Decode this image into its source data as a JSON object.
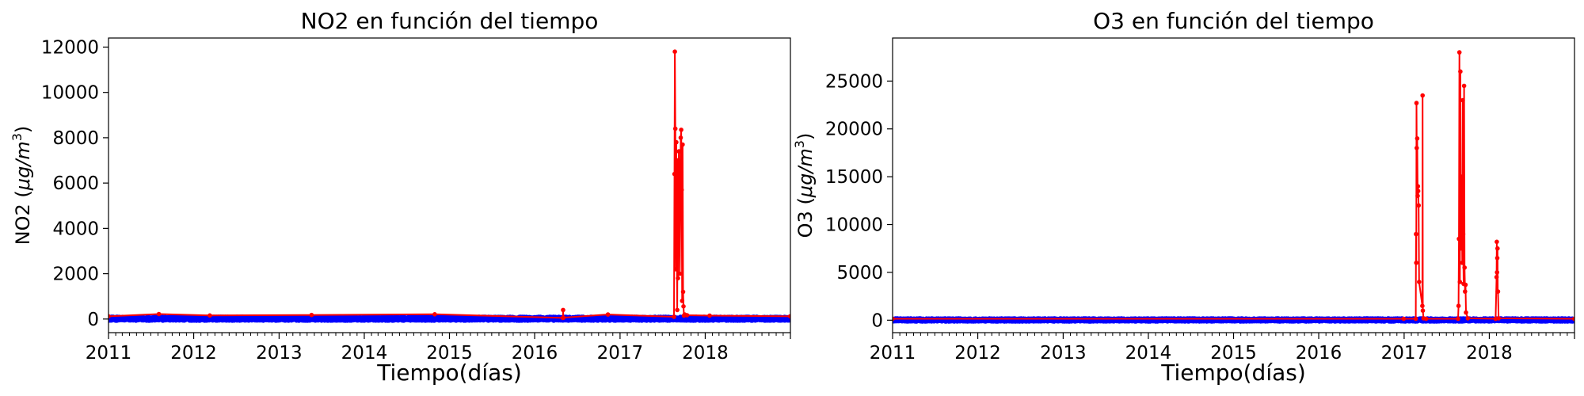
{
  "chart_data": [
    {
      "type": "line",
      "title": "NO2 en función del tiempo",
      "xlabel": "Tiempo(días)",
      "ylabel": "NO2 (μg/m³)",
      "ylabel_main": "NO2 (",
      "ylabel_unit": "μg/m",
      "ylabel_sup": "3",
      "ylabel_close": ")",
      "xlim": [
        "2011-01-01",
        "2019-01-01"
      ],
      "ylim": [
        -600,
        12400
      ],
      "xticks": [
        "2011",
        "2012",
        "2013",
        "2014",
        "2015",
        "2016",
        "2017",
        "2018"
      ],
      "yticks": [
        0,
        2000,
        4000,
        6000,
        8000,
        10000,
        12000
      ],
      "baseline_series": {
        "color": "#0000ff",
        "range": [
          -60,
          90
        ]
      },
      "series": [
        {
          "color": "#ff0000",
          "x": [
            "2011-01-01",
            "2011-08-05",
            "2012-03-10",
            "2013-05-20",
            "2014-10-30",
            "2016-05-01",
            "2016-05-02",
            "2016-05-03",
            "2016-11-10",
            "2017-08-20",
            "2017-08-22",
            "2017-08-24",
            "2017-08-26",
            "2017-08-28",
            "2017-08-30",
            "2017-09-01",
            "2017-09-03",
            "2017-09-05",
            "2017-09-06",
            "2017-09-08",
            "2017-09-10",
            "2017-09-12",
            "2017-09-14",
            "2017-09-16",
            "2017-09-18",
            "2017-09-20",
            "2017-09-22",
            "2017-09-24",
            "2017-09-26",
            "2017-09-28",
            "2017-09-30",
            "2017-10-02",
            "2017-10-05",
            "2017-10-15",
            "2018-01-20",
            "2018-12-31"
          ],
          "y": [
            120,
            220,
            160,
            180,
            210,
            50,
            400,
            60,
            200,
            100,
            6400,
            11800,
            8400,
            2200,
            7800,
            3300,
            400,
            7000,
            1800,
            6600,
            7400,
            5700,
            2000,
            4500,
            8000,
            8350,
            5700,
            800,
            7700,
            1200,
            560,
            150,
            200,
            170,
            150,
            120
          ]
        }
      ]
    },
    {
      "type": "line",
      "title": "O3 en función del tiempo",
      "xlabel": "Tiempo(días)",
      "ylabel": "O3 (μg/m³)",
      "ylabel_main": "O3 (",
      "ylabel_unit": "μg/m",
      "ylabel_sup": "3",
      "ylabel_close": ")",
      "xlim": [
        "2011-01-01",
        "2019-01-01"
      ],
      "ylim": [
        -1300,
        29500
      ],
      "xticks": [
        "2011",
        "2012",
        "2013",
        "2014",
        "2015",
        "2016",
        "2017",
        "2018"
      ],
      "yticks": [
        0,
        5000,
        10000,
        15000,
        20000,
        25000
      ],
      "baseline_series": {
        "color": "#0000ff",
        "range": [
          -100,
          150
        ]
      },
      "series": [
        {
          "color": "#ff0000",
          "x": [
            "2011-01-01",
            "2016-12-30",
            "2017-02-20",
            "2017-02-21",
            "2017-02-22",
            "2017-02-23",
            "2017-02-24",
            "2017-02-26",
            "2017-02-28",
            "2017-03-01",
            "2017-03-02",
            "2017-03-04",
            "2017-03-06",
            "2017-03-20",
            "2017-03-21",
            "2017-03-22",
            "2017-03-25",
            "2017-04-05",
            "2017-08-20",
            "2017-08-22",
            "2017-08-24",
            "2017-08-26",
            "2017-08-28",
            "2017-08-30",
            "2017-09-01",
            "2017-09-03",
            "2017-09-05",
            "2017-09-07",
            "2017-09-09",
            "2017-09-11",
            "2017-09-13",
            "2017-09-15",
            "2017-09-17",
            "2017-09-19",
            "2017-09-21",
            "2017-09-23",
            "2017-10-01",
            "2018-01-28",
            "2018-02-01",
            "2018-02-02",
            "2018-02-03",
            "2018-02-04",
            "2018-02-05",
            "2018-02-06",
            "2018-02-07",
            "2018-02-10",
            "2018-12-31"
          ],
          "y": [
            150,
            150,
            150,
            9000,
            6000,
            22700,
            18000,
            19000,
            13000,
            14000,
            13500,
            12000,
            4000,
            1500,
            23500,
            1000,
            200,
            150,
            150,
            1500,
            8500,
            28000,
            4000,
            26000,
            7500,
            15000,
            13500,
            6000,
            23000,
            9000,
            3800,
            24500,
            5500,
            3000,
            3700,
            800,
            200,
            150,
            4500,
            8200,
            5000,
            6500,
            7500,
            3000,
            3000,
            200,
            150
          ]
        }
      ]
    }
  ]
}
